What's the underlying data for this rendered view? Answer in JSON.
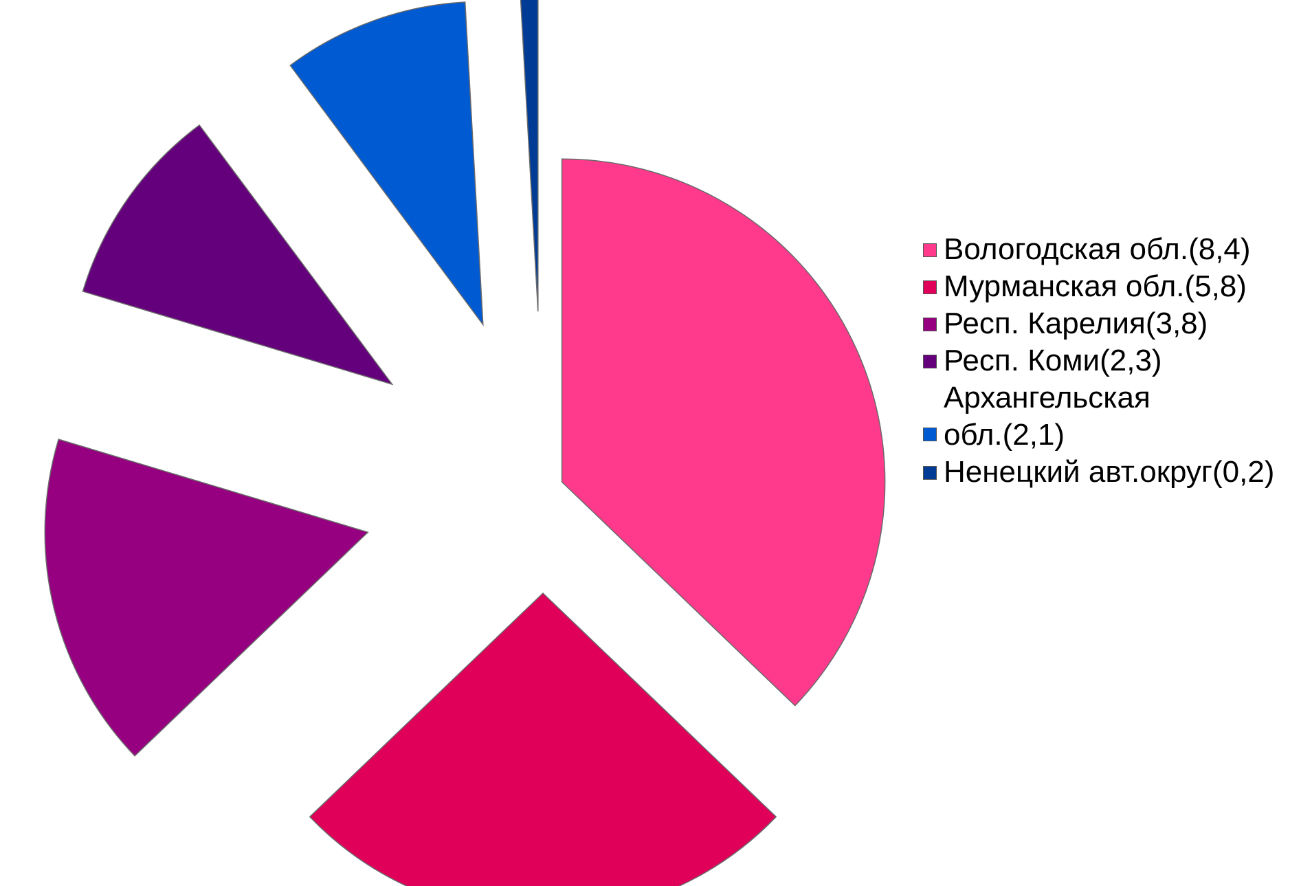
{
  "chart_data": {
    "type": "pie",
    "exploded": true,
    "categories": [
      "Вологодская обл.(8,4)",
      "Мурманская обл.(5,8)",
      "Респ. Карелия(3,8)",
      "Респ. Коми(2,3)",
      "Архангельская обл.(2,1)",
      "Ненецкий авт.округ(0,2)"
    ],
    "values": [
      8.4,
      5.8,
      3.8,
      2.3,
      2.1,
      0.2
    ],
    "colors": [
      "#ff3a8c",
      "#e0005a",
      "#960080",
      "#64007c",
      "#005ad2",
      "#003c96"
    ],
    "legend_position": "right",
    "title": ""
  },
  "legend": {
    "items": [
      {
        "label": "Вологодская обл.(8,4)",
        "color": "#ff3a8c"
      },
      {
        "label": "Мурманская обл.(5,8)",
        "color": "#e0005a"
      },
      {
        "label": "Респ. Карелия(3,8)",
        "color": "#960080"
      },
      {
        "label": "Респ. Коми(2,3)",
        "color": "#64007c"
      },
      {
        "label": "Архангельская обл.(2,1)",
        "color": "#005ad2"
      },
      {
        "label": "Ненецкий авт.округ(0,2)",
        "color": "#003c96"
      }
    ]
  }
}
